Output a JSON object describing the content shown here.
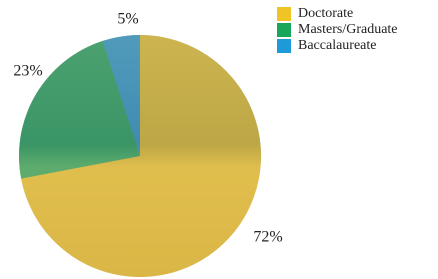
{
  "chart_data": {
    "type": "pie",
    "categories": [
      "Doctorate",
      "Masters/Graduate",
      "Baccalaureate"
    ],
    "values": [
      72,
      23,
      5
    ],
    "value_labels": [
      "72%",
      "23%",
      "5%"
    ],
    "colors": [
      "#f0c425",
      "#17a65a",
      "#1f9ad8"
    ],
    "legend": "upper right"
  }
}
